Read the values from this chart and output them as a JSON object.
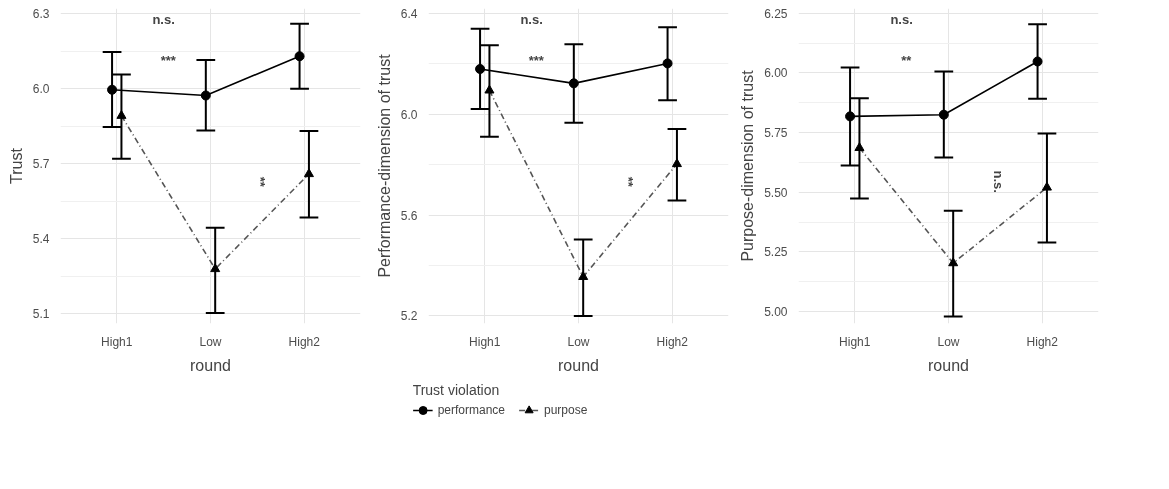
{
  "chart_data": [
    {
      "type": "line",
      "xlabel": "round",
      "ylabel": "Trust",
      "categories": [
        "High1",
        "Low",
        "High2"
      ],
      "ylim": [
        5.06,
        6.32
      ],
      "yticks": [
        5.1,
        5.4,
        5.7,
        {
          "value": 6.0,
          "label": "6.0"
        },
        6.3
      ],
      "grid": true,
      "series": [
        {
          "color": "#000000",
          "marker": "circle",
          "line_style": "solid",
          "values": [
            5.995,
            5.972,
            6.129
          ],
          "errors": [
            [
              5.846,
              6.146
            ],
            [
              5.832,
              6.114
            ],
            [
              5.999,
              6.259
            ]
          ]
        },
        {
          "color": "#555555",
          "marker": "triangle",
          "line_style": "dashed",
          "values": [
            5.891,
            5.278,
            5.658
          ],
          "errors": [
            [
              5.719,
              6.056
            ],
            [
              5.102,
              5.443
            ],
            [
              5.484,
              5.83
            ]
          ]
        }
      ],
      "annotations": [
        "n.s.",
        "***",
        "**"
      ]
    },
    {
      "type": "line",
      "xlabel": "round",
      "ylabel": "Performance-dimension of trust",
      "categories": [
        "High1",
        "Low",
        "High2"
      ],
      "ylim": [
        5.17,
        6.42
      ],
      "yticks": [
        5.2,
        5.6,
        {
          "value": 6.0,
          "label": "6.0"
        },
        6.4
      ],
      "grid": true,
      "legend": "bottom",
      "legend_title": "Trust violation",
      "series": [
        {
          "name": "performance",
          "color": "#000000",
          "marker": "circle",
          "line_style": "solid",
          "values": [
            6.18,
            6.123,
            6.202
          ],
          "errors": [
            [
              6.021,
              6.34
            ],
            [
              5.967,
              6.278
            ],
            [
              6.056,
              6.346
            ]
          ]
        },
        {
          "name": "purpose",
          "color": "#555555",
          "marker": "triangle",
          "line_style": "dashed",
          "values": [
            6.095,
            5.355,
            5.803
          ],
          "errors": [
            [
              5.911,
              6.274
            ],
            [
              5.2,
              5.503
            ],
            [
              5.658,
              5.942
            ]
          ]
        }
      ],
      "annotations": [
        "n.s.",
        "***",
        "**"
      ]
    },
    {
      "type": "line",
      "xlabel": "round",
      "ylabel": "Purpose-dimension of trust",
      "categories": [
        "High1",
        "Low",
        "High2"
      ],
      "ylim": [
        4.95,
        6.27
      ],
      "yticks": [
        {
          "value": 5.0,
          "label": "5.00"
        },
        5.25,
        {
          "value": 5.5,
          "label": "5.50"
        },
        5.75,
        {
          "value": 6.0,
          "label": "6.00"
        },
        6.25
      ],
      "grid": true,
      "series": [
        {
          "color": "#000000",
          "marker": "circle",
          "line_style": "solid",
          "values": [
            5.818,
            5.825,
            6.048
          ],
          "errors": [
            [
              5.612,
              6.023
            ],
            [
              5.646,
              6.006
            ],
            [
              5.892,
              6.204
            ]
          ]
        },
        {
          "color": "#555555",
          "marker": "triangle",
          "line_style": "dashed",
          "values": [
            5.686,
            5.203,
            5.52
          ],
          "errors": [
            [
              5.474,
              5.894
            ],
            [
              4.979,
              5.422
            ],
            [
              5.289,
              5.746
            ]
          ]
        }
      ],
      "annotations": [
        "n.s.",
        "**",
        "n.s."
      ]
    }
  ]
}
